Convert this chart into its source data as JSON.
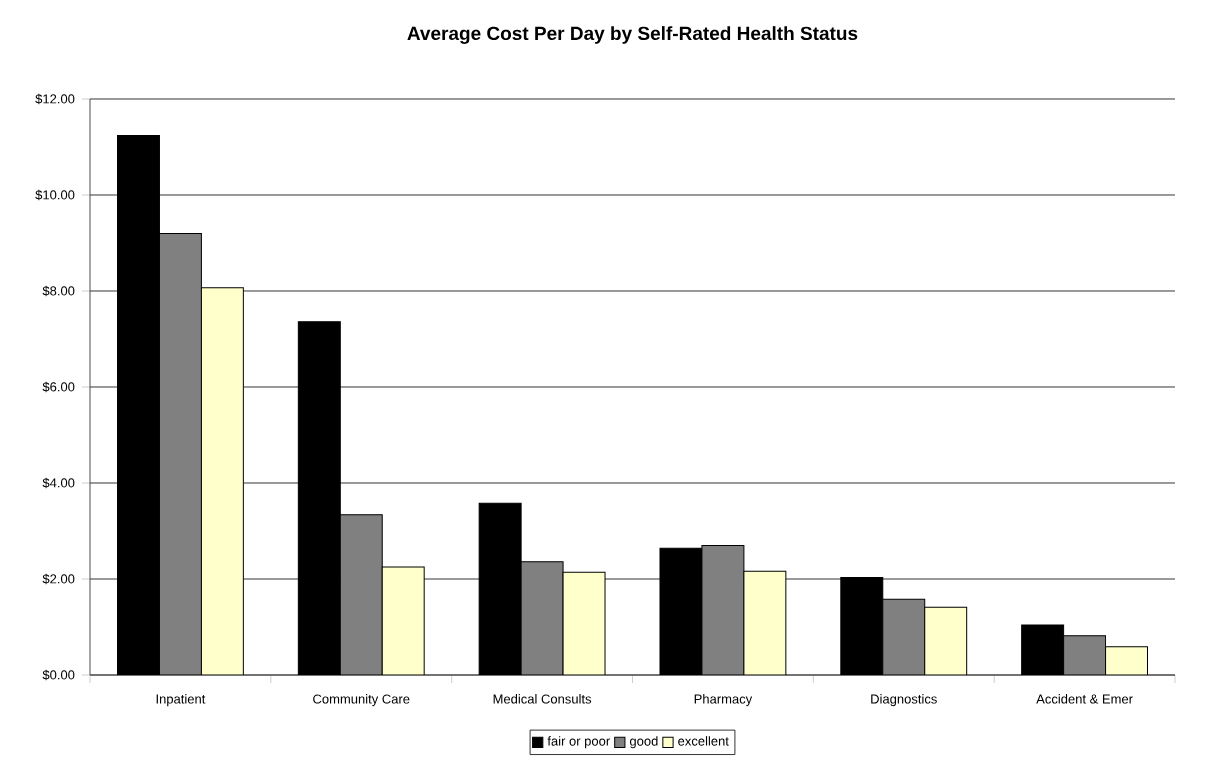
{
  "chart_data": {
    "type": "bar",
    "title": "Average Cost Per Day by Self-Rated Health Status",
    "categories": [
      "Inpatient",
      "Community Care",
      "Medical Consults",
      "Pharmacy",
      "Diagnostics",
      "Accident & Emer"
    ],
    "series": [
      {
        "name": "fair or poor",
        "color": "#000000",
        "values": [
          11.24,
          7.36,
          3.58,
          2.64,
          2.03,
          1.04
        ]
      },
      {
        "name": "good",
        "color": "#808080",
        "values": [
          9.2,
          3.34,
          2.36,
          2.7,
          1.58,
          0.82
        ]
      },
      {
        "name": "excellent",
        "color": "#ffffcc",
        "values": [
          8.07,
          2.25,
          2.14,
          2.16,
          1.41,
          0.59
        ]
      }
    ],
    "ylim": [
      0,
      12
    ],
    "yticks": [
      {
        "value": 0,
        "label": "$0.00"
      },
      {
        "value": 2,
        "label": "$2.00"
      },
      {
        "value": 4,
        "label": "$4.00"
      },
      {
        "value": 6,
        "label": "$6.00"
      },
      {
        "value": 8,
        "label": "$8.00"
      },
      {
        "value": 10,
        "label": "$10.00"
      },
      {
        "value": 12,
        "label": "$12.00"
      }
    ],
    "grid": "y",
    "legend": "bottom"
  }
}
